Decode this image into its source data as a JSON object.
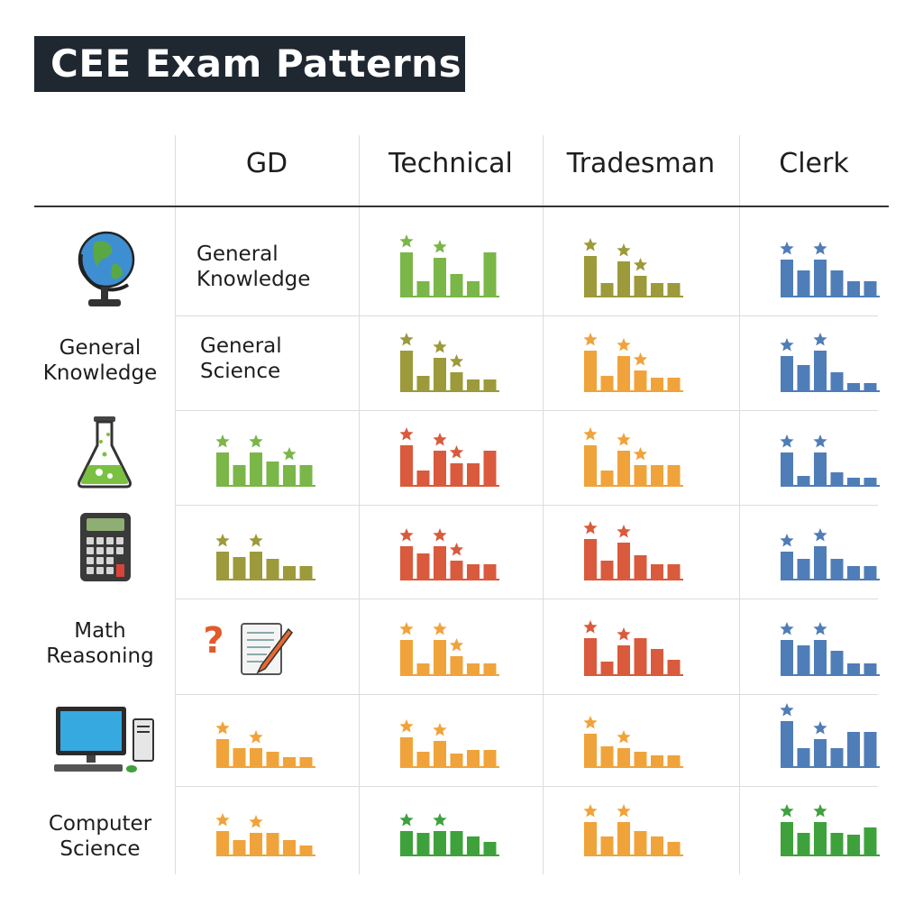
{
  "title": "CEE Exam Patterns",
  "columns": [
    "GD",
    "Technical",
    "Tradesman",
    "Clerk"
  ],
  "side_labels": [
    {
      "lines": [
        "General",
        "Knowledge"
      ]
    },
    {
      "lines": [
        "Math",
        "Reasoning"
      ]
    },
    {
      "lines": [
        "Computer",
        "Science"
      ]
    }
  ],
  "side_icons": [
    "globe-icon",
    "flask-icon",
    "calculator-icon",
    "computer-icon"
  ],
  "cell_labels": [
    {
      "row": 0,
      "lines": [
        "General",
        "Knowledge"
      ]
    },
    {
      "row": 1,
      "lines": [
        "General",
        "Science"
      ]
    }
  ],
  "reasoning_icons": [
    "question-mark-icon",
    "notepad-pencil-icon"
  ],
  "colors": {
    "green": "#7ab648",
    "olive": "#9c9a3a",
    "orange": "#f0a33a",
    "red": "#d95a3c",
    "blue": "#4f7db8",
    "dark_green": "#3fa13c"
  },
  "chart_data": {
    "type": "bar",
    "title": "CEE Exam Patterns",
    "columns": [
      "GD",
      "Technical",
      "Tradesman",
      "Clerk"
    ],
    "rows": 7,
    "cells": [
      {
        "row": 0,
        "col": 1,
        "color": "green",
        "values": [
          48,
          16,
          42,
          24,
          16,
          48
        ],
        "stars": [
          0,
          2
        ]
      },
      {
        "row": 0,
        "col": 2,
        "color": "olive",
        "values": [
          44,
          14,
          38,
          22,
          14,
          14
        ],
        "stars": [
          0,
          2,
          3
        ]
      },
      {
        "row": 0,
        "col": 3,
        "color": "blue",
        "values": [
          40,
          28,
          40,
          28,
          16,
          16
        ],
        "stars": [
          0,
          2
        ]
      },
      {
        "row": 1,
        "col": 1,
        "color": "olive",
        "values": [
          44,
          16,
          36,
          20,
          12,
          12
        ],
        "stars": [
          0,
          2,
          3
        ]
      },
      {
        "row": 1,
        "col": 2,
        "color": "orange",
        "values": [
          44,
          16,
          38,
          22,
          14,
          14
        ],
        "stars": [
          0,
          2,
          3
        ]
      },
      {
        "row": 1,
        "col": 3,
        "color": "blue",
        "values": [
          38,
          28,
          44,
          20,
          8,
          8
        ],
        "stars": [
          0,
          2
        ]
      },
      {
        "row": 2,
        "col": 0,
        "color": "green",
        "values": [
          36,
          22,
          36,
          26,
          22,
          22
        ],
        "stars": [
          0,
          2,
          4
        ]
      },
      {
        "row": 2,
        "col": 1,
        "color": "red",
        "values": [
          44,
          16,
          38,
          24,
          24,
          38
        ],
        "stars": [
          0,
          2,
          3
        ]
      },
      {
        "row": 2,
        "col": 2,
        "color": "orange",
        "values": [
          44,
          16,
          38,
          22,
          22,
          22
        ],
        "stars": [
          0,
          2,
          3
        ]
      },
      {
        "row": 2,
        "col": 3,
        "color": "blue",
        "values": [
          36,
          10,
          36,
          14,
          8,
          8
        ],
        "stars": [
          0,
          2
        ]
      },
      {
        "row": 3,
        "col": 0,
        "color": "olive",
        "values": [
          30,
          24,
          30,
          22,
          14,
          14
        ],
        "stars": [
          0,
          2
        ]
      },
      {
        "row": 3,
        "col": 1,
        "color": "red",
        "values": [
          36,
          28,
          36,
          20,
          16,
          16
        ],
        "stars": [
          0,
          2,
          3
        ]
      },
      {
        "row": 3,
        "col": 2,
        "color": "red",
        "values": [
          44,
          20,
          40,
          26,
          16,
          16
        ],
        "stars": [
          0,
          2
        ]
      },
      {
        "row": 3,
        "col": 3,
        "color": "blue",
        "values": [
          30,
          22,
          36,
          22,
          14,
          14
        ],
        "stars": [
          0,
          2
        ]
      },
      {
        "row": 4,
        "col": 1,
        "color": "orange",
        "values": [
          38,
          12,
          38,
          20,
          12,
          12
        ],
        "stars": [
          0,
          2,
          3
        ]
      },
      {
        "row": 4,
        "col": 2,
        "color": "red",
        "values": [
          40,
          14,
          32,
          40,
          28,
          16
        ],
        "stars": [
          0,
          2
        ]
      },
      {
        "row": 4,
        "col": 3,
        "color": "blue",
        "values": [
          38,
          32,
          38,
          26,
          12,
          12
        ],
        "stars": [
          0,
          2
        ]
      },
      {
        "row": 5,
        "col": 0,
        "color": "orange",
        "values": [
          30,
          20,
          20,
          16,
          10,
          10
        ],
        "stars": [
          0,
          2
        ]
      },
      {
        "row": 5,
        "col": 1,
        "color": "orange",
        "values": [
          32,
          16,
          28,
          14,
          18,
          18
        ],
        "stars": [
          0,
          2
        ]
      },
      {
        "row": 5,
        "col": 2,
        "color": "orange",
        "values": [
          36,
          22,
          20,
          16,
          12,
          12
        ],
        "stars": [
          0,
          2
        ]
      },
      {
        "row": 5,
        "col": 3,
        "color": "blue",
        "values": [
          50,
          20,
          30,
          20,
          38,
          38
        ],
        "stars": [
          0,
          2
        ]
      },
      {
        "row": 6,
        "col": 0,
        "color": "orange",
        "values": [
          26,
          16,
          24,
          24,
          16,
          10
        ],
        "stars": [
          0,
          2
        ]
      },
      {
        "row": 6,
        "col": 1,
        "color": "dark_green",
        "values": [
          26,
          24,
          26,
          26,
          20,
          14
        ],
        "stars": [
          0,
          2
        ]
      },
      {
        "row": 6,
        "col": 2,
        "color": "orange",
        "values": [
          36,
          20,
          36,
          26,
          20,
          14
        ],
        "stars": [
          0,
          2
        ]
      },
      {
        "row": 6,
        "col": 3,
        "color": "dark_green",
        "values": [
          36,
          24,
          36,
          24,
          22,
          30
        ],
        "stars": [
          0,
          2
        ]
      }
    ]
  }
}
